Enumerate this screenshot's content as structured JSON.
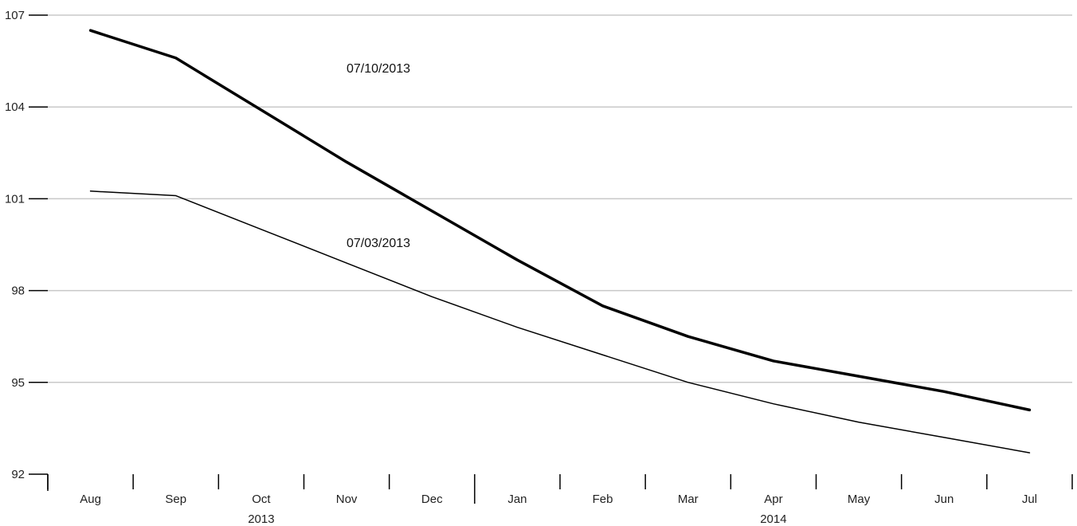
{
  "chart_data": {
    "type": "line",
    "title": "",
    "xlabel": "",
    "ylabel": "",
    "categories": [
      "Aug",
      "Sep",
      "Oct",
      "Nov",
      "Dec",
      "Jan",
      "Feb",
      "Mar",
      "Apr",
      "May",
      "Jun",
      "Jul"
    ],
    "years": [
      {
        "label": "2013",
        "first_category": 0,
        "last_category": 4
      },
      {
        "label": "2014",
        "first_category": 5,
        "last_category": 11
      }
    ],
    "ylim": [
      92,
      107
    ],
    "yticks": [
      92,
      95,
      98,
      101,
      104,
      107
    ],
    "grid": true,
    "series": [
      {
        "name": "07/10/2013",
        "color": "#000000",
        "emphasis": "thick",
        "values": [
          106.5,
          105.6,
          103.9,
          102.2,
          100.6,
          99.0,
          97.5,
          96.5,
          95.7,
          95.2,
          94.7,
          94.1
        ]
      },
      {
        "name": "07/03/2013",
        "color": "#000000",
        "emphasis": "thin",
        "values": [
          101.25,
          101.1,
          100.0,
          98.9,
          97.8,
          96.8,
          95.9,
          95.0,
          94.3,
          93.7,
          93.2,
          92.7
        ]
      }
    ]
  }
}
